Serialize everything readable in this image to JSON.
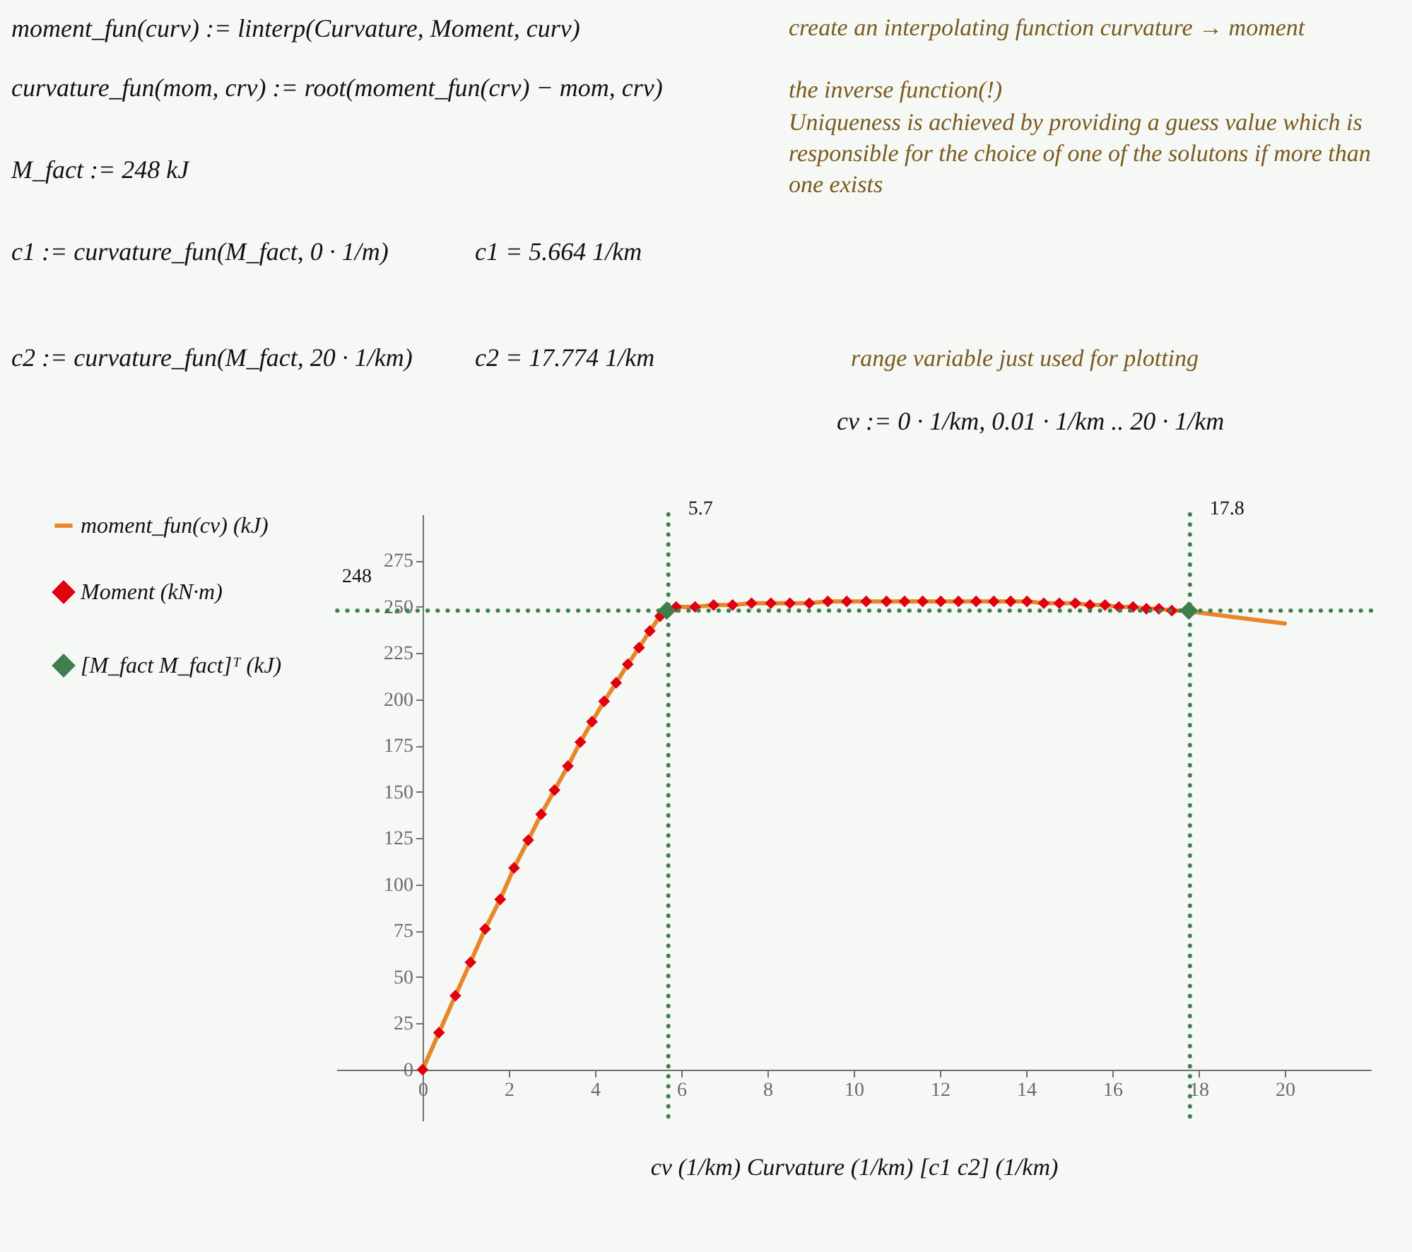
{
  "chart_data": {
    "type": "line",
    "xlabel": "cv (1/km)     Curvature (1/km)     [c1  c2] (1/km)",
    "xlim": [
      -2,
      22
    ],
    "xticks": [
      0,
      2,
      4,
      6,
      8,
      10,
      12,
      14,
      16,
      18,
      20
    ],
    "ylim": [
      -27.5,
      300
    ],
    "yticks": [
      0,
      25,
      50,
      75,
      100,
      125,
      150,
      175,
      200,
      225,
      250,
      275
    ],
    "legend": "left",
    "grid": false,
    "series": [
      {
        "name": "moment_fun(cv)  (kJ)",
        "marker": "none",
        "color": "#e8872a",
        "x": [
          0,
          0.38,
          0.76,
          1.11,
          1.45,
          1.8,
          2.12,
          2.45,
          2.75,
          3.06,
          3.37,
          3.66,
          3.93,
          4.21,
          4.49,
          4.76,
          5.02,
          5.27,
          5.51,
          5.88,
          6.32,
          6.75,
          7.19,
          7.63,
          8.08,
          8.52,
          8.97,
          9.4,
          9.84,
          10.29,
          10.76,
          11.18,
          11.6,
          12.02,
          12.43,
          12.84,
          13.25,
          13.64,
          14.02,
          14.41,
          14.77,
          15.14,
          15.48,
          15.83,
          16.15,
          16.48,
          16.79,
          17.08,
          17.38,
          17.66,
          20
        ],
        "values": [
          0,
          20,
          40,
          58,
          76,
          92,
          109,
          124,
          138,
          151,
          164,
          177,
          188,
          199,
          209,
          219,
          228,
          237,
          245,
          250,
          250,
          251,
          251,
          252,
          252,
          252,
          252,
          253,
          253,
          253,
          253,
          253,
          253,
          253,
          253,
          253,
          253,
          253,
          253,
          252,
          252,
          252,
          251,
          251,
          250,
          250,
          249,
          249,
          248,
          248,
          241
        ]
      },
      {
        "name": "Moment  (kN·m)",
        "type": "scatter",
        "marker": "diamond",
        "color": "#e00010",
        "x": [
          0,
          0.38,
          0.76,
          1.11,
          1.45,
          1.8,
          2.12,
          2.45,
          2.75,
          3.06,
          3.37,
          3.66,
          3.93,
          4.21,
          4.49,
          4.76,
          5.02,
          5.27,
          5.51,
          5.88,
          6.32,
          6.75,
          7.19,
          7.63,
          8.08,
          8.52,
          8.97,
          9.4,
          9.84,
          10.29,
          10.76,
          11.18,
          11.6,
          12.02,
          12.43,
          12.84,
          13.25,
          13.64,
          14.02,
          14.41,
          14.77,
          15.14,
          15.48,
          15.83,
          16.15,
          16.48,
          16.79,
          17.08,
          17.38
        ],
        "values": [
          0,
          20,
          40,
          58,
          76,
          92,
          109,
          124,
          138,
          151,
          164,
          177,
          188,
          199,
          209,
          219,
          228,
          237,
          245,
          250,
          250,
          251,
          251,
          252,
          252,
          252,
          252,
          253,
          253,
          253,
          253,
          253,
          253,
          253,
          253,
          253,
          253,
          253,
          253,
          252,
          252,
          252,
          251,
          251,
          250,
          250,
          249,
          249,
          248
        ]
      },
      {
        "name": "[M_fact  M_fact]ᵀ  (kJ)",
        "type": "scatter",
        "marker": "diamond",
        "color": "#3f7f4c",
        "x": [
          5.664,
          17.774
        ],
        "values": [
          248,
          248
        ]
      }
    ],
    "ref_lines": [
      {
        "axis": "x",
        "value": 5.7,
        "label": "5.7",
        "color": "#3f7f4c",
        "line_style": "dotted"
      },
      {
        "axis": "x",
        "value": 17.8,
        "label": "17.8",
        "color": "#3f7f4c",
        "line_style": "dotted"
      },
      {
        "axis": "y",
        "value": 248,
        "label": "248",
        "color": "#3f7f4c",
        "line_style": "dotted"
      }
    ],
    "annotations": [
      "moment_fun(curv) := linterp(Curvature, Moment, curv)",
      "curvature_fun(mom, crv) := root(moment_fun(crv) − mom, crv)",
      "M_fact := 248 kJ",
      "c1 := curvature_fun(M_fact, 0 · 1/m)",
      "c1 = 5.664 1/km",
      "c2 := curvature_fun(M_fact, 20 · 1/km)",
      "c2 = 17.774 1/km",
      "create an interpolating function   curvature → moment",
      "the inverse function(!)",
      "Uniqueness is achieved by providing a guess value which is responsible for the choice of one of the solutons if more than one exists",
      "range variable just used for plotting",
      "cv := 0 · 1/km, 0.01 · 1/km .. 20 · 1/km"
    ]
  }
}
